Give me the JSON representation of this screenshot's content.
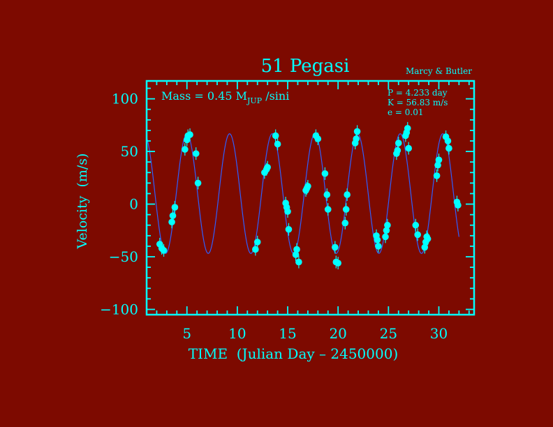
{
  "colors": {
    "background": "#7d0a00",
    "axes": "#00ffff",
    "text": "#00ffff",
    "curve": "#2f5fff",
    "points": "#00ffff",
    "errorbar": "#00ffff"
  },
  "chart_data": {
    "type": "scatter",
    "title": "51 Pegasi",
    "credit": "Marcy & Butler",
    "xlabel": "TIME  (Julian Day – 2450000)",
    "ylabel": "Velocity  (m/s)",
    "xlim": [
      1,
      33.5
    ],
    "ylim": [
      -105,
      117
    ],
    "x_ticks": [
      5,
      10,
      15,
      20,
      25,
      30
    ],
    "x_tick_labels": [
      "5",
      "10",
      "15",
      "20",
      "25",
      "30"
    ],
    "y_ticks": [
      100,
      50,
      0,
      -50,
      -100
    ],
    "y_tick_labels": [
      "100",
      "50",
      "0",
      "−50",
      "−100"
    ],
    "x_minor_step": 1,
    "y_minor_step": 10,
    "annotation_mass": {
      "prefix": "Mass = 0.45 M",
      "subscript": "JUP",
      "suffix": " /sini"
    },
    "orbit_params": [
      "P = 4.233 day",
      "K = 56.83 m/s",
      "e = 0.01"
    ],
    "model_curve": {
      "period": 4.233,
      "amplitude": 56.83,
      "offset": 10,
      "peak_time": 5.0
    },
    "points": [
      {
        "x": 2.3,
        "y": -38
      },
      {
        "x": 2.5,
        "y": -42
      },
      {
        "x": 2.7,
        "y": -44
      },
      {
        "x": 3.5,
        "y": -17
      },
      {
        "x": 3.6,
        "y": -11
      },
      {
        "x": 3.8,
        "y": -3
      },
      {
        "x": 4.8,
        "y": 52
      },
      {
        "x": 5.0,
        "y": 61
      },
      {
        "x": 5.1,
        "y": 65
      },
      {
        "x": 5.3,
        "y": 66
      },
      {
        "x": 5.9,
        "y": 48
      },
      {
        "x": 6.1,
        "y": 20
      },
      {
        "x": 11.8,
        "y": -43
      },
      {
        "x": 12.0,
        "y": -36
      },
      {
        "x": 12.7,
        "y": 30
      },
      {
        "x": 12.9,
        "y": 33
      },
      {
        "x": 13.0,
        "y": 35
      },
      {
        "x": 13.8,
        "y": 65
      },
      {
        "x": 14.0,
        "y": 57
      },
      {
        "x": 14.8,
        "y": 1
      },
      {
        "x": 14.9,
        "y": -3
      },
      {
        "x": 15.0,
        "y": -7
      },
      {
        "x": 15.1,
        "y": -24
      },
      {
        "x": 15.8,
        "y": -48
      },
      {
        "x": 15.9,
        "y": -43
      },
      {
        "x": 16.1,
        "y": -55
      },
      {
        "x": 16.8,
        "y": 13
      },
      {
        "x": 16.9,
        "y": 15
      },
      {
        "x": 17.0,
        "y": 17
      },
      {
        "x": 17.8,
        "y": 65
      },
      {
        "x": 18.0,
        "y": 62
      },
      {
        "x": 18.7,
        "y": 29
      },
      {
        "x": 18.9,
        "y": 9
      },
      {
        "x": 19.0,
        "y": -5
      },
      {
        "x": 19.7,
        "y": -41
      },
      {
        "x": 19.8,
        "y": -55
      },
      {
        "x": 20.0,
        "y": -56
      },
      {
        "x": 20.7,
        "y": -18
      },
      {
        "x": 20.8,
        "y": -5
      },
      {
        "x": 20.9,
        "y": 9
      },
      {
        "x": 21.7,
        "y": 58
      },
      {
        "x": 21.8,
        "y": 62
      },
      {
        "x": 21.9,
        "y": 69
      },
      {
        "x": 23.8,
        "y": -30
      },
      {
        "x": 23.9,
        "y": -34
      },
      {
        "x": 24.0,
        "y": -40
      },
      {
        "x": 24.7,
        "y": -31
      },
      {
        "x": 24.8,
        "y": -25
      },
      {
        "x": 24.9,
        "y": -20
      },
      {
        "x": 25.8,
        "y": 48
      },
      {
        "x": 25.9,
        "y": 51
      },
      {
        "x": 26.0,
        "y": 58
      },
      {
        "x": 26.7,
        "y": 65
      },
      {
        "x": 26.8,
        "y": 68
      },
      {
        "x": 26.9,
        "y": 72
      },
      {
        "x": 27.0,
        "y": 53
      },
      {
        "x": 27.7,
        "y": -20
      },
      {
        "x": 27.9,
        "y": -29
      },
      {
        "x": 28.6,
        "y": -41
      },
      {
        "x": 28.7,
        "y": -36
      },
      {
        "x": 28.8,
        "y": -31
      },
      {
        "x": 28.9,
        "y": -33
      },
      {
        "x": 29.8,
        "y": 27
      },
      {
        "x": 29.9,
        "y": 37
      },
      {
        "x": 30.0,
        "y": 42
      },
      {
        "x": 30.7,
        "y": 64
      },
      {
        "x": 30.9,
        "y": 60
      },
      {
        "x": 31.0,
        "y": 53
      },
      {
        "x": 31.8,
        "y": 2
      },
      {
        "x": 31.9,
        "y": -1
      }
    ],
    "grid": false
  }
}
